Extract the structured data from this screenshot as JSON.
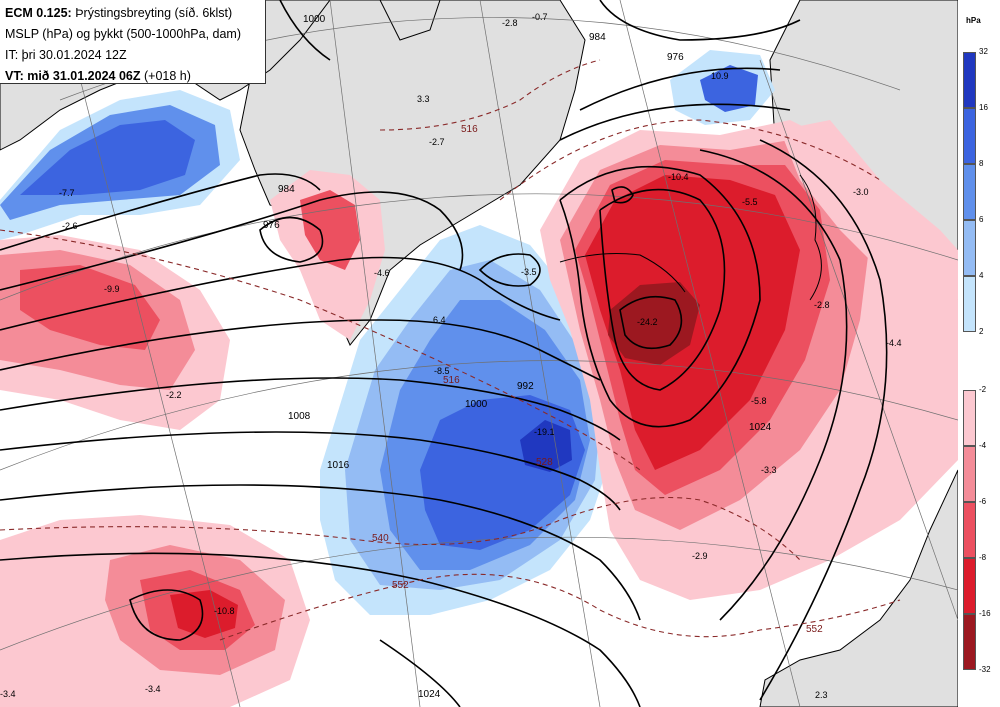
{
  "header": {
    "model": "ECM 0.125:",
    "product": "Þrýstingsbreyting (síð. 6klst)",
    "line2": "MSLP (hPa) og þykkt (500-1000hPa, dam)",
    "issue_time": "IT: þri 30.01.2024 12Z",
    "valid_prefix": "VT: mið 31.01.2024 06Z",
    "valid_suffix": "(+018 h)"
  },
  "legend": {
    "unit": "hPa",
    "rise": [
      {
        "label": "32",
        "color": "#2038c0"
      },
      {
        "label": "16",
        "color": "#3c64e0"
      },
      {
        "label": "8",
        "color": "#6090ec"
      },
      {
        "label": "6",
        "color": "#94bcf4"
      },
      {
        "label": "4",
        "color": "#c4e4fc"
      },
      {
        "label": "2",
        "color": ""
      }
    ],
    "fall": [
      {
        "label": "-2",
        "color": "#fcc8d0"
      },
      {
        "label": "-4",
        "color": "#f48c98"
      },
      {
        "label": "-6",
        "color": "#ec5060"
      },
      {
        "label": "-8",
        "color": "#dc1c2c"
      },
      {
        "label": "-16",
        "color": "#9c1820"
      },
      {
        "label": "-32",
        "color": ""
      }
    ]
  },
  "map": {
    "colors": {
      "ocean": "#ffffff",
      "land": "#e0e0e0",
      "coast": "#000000",
      "isobar": "#000000",
      "thickness": "#8a2a2a",
      "grid": "#707070"
    },
    "isobar_labels": [
      "1000",
      "984",
      "976",
      "984",
      "992",
      "1000",
      "1008",
      "1016",
      "1024",
      "1024",
      "976"
    ],
    "thickness_labels": [
      "540",
      "552",
      "516",
      "528",
      "552",
      "516"
    ],
    "values": [
      "-2.8",
      "-0.7",
      "3.3",
      "-2.7",
      "10.9",
      "-7.7",
      "-2.6",
      "-9.9",
      "-2.2",
      "-4.6",
      "6.4",
      "-3.5",
      "-10.4",
      "-5.5",
      "-3.0",
      "-2.8",
      "-24.2",
      "-8.5",
      "-19.1",
      "-4.4",
      "-5.8",
      "-3.3",
      "-2.9",
      "-10.8",
      "-3.4",
      "-3.4",
      "2.3"
    ]
  }
}
